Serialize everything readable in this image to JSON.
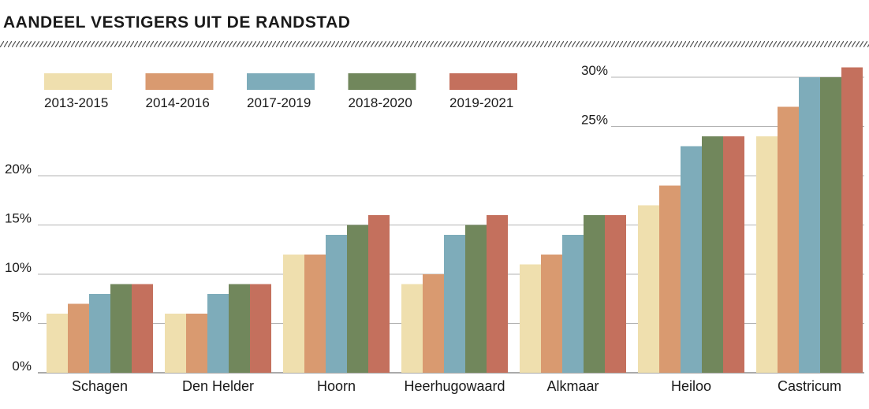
{
  "chart_data": {
    "type": "bar",
    "title": "AANDEEL VESTIGERS UIT DE RANDSTAD",
    "categories": [
      "Schagen",
      "Den Helder",
      "Hoorn",
      "Heerhugowaard",
      "Alkmaar",
      "Heiloo",
      "Castricum"
    ],
    "series": [
      {
        "name": "2013-2015",
        "color": "#efdfae",
        "values": [
          6,
          6,
          12,
          9,
          11,
          17,
          24
        ]
      },
      {
        "name": "2014-2016",
        "color": "#d99a70",
        "values": [
          7,
          6,
          12,
          10,
          12,
          19,
          27
        ]
      },
      {
        "name": "2017-2019",
        "color": "#7eacba",
        "values": [
          8,
          8,
          14,
          14,
          14,
          23,
          30
        ]
      },
      {
        "name": "2018-2020",
        "color": "#71875c",
        "values": [
          9,
          9,
          15,
          15,
          16,
          24,
          30
        ]
      },
      {
        "name": "2019-2021",
        "color": "#c4705d",
        "values": [
          9,
          9,
          16,
          16,
          16,
          24,
          31
        ]
      }
    ],
    "yticks": [
      "0%",
      "5%",
      "10%",
      "15%",
      "20%",
      "25%",
      "30%"
    ],
    "ylim": [
      0,
      30
    ],
    "grid": true,
    "legend_position": "top-left"
  }
}
